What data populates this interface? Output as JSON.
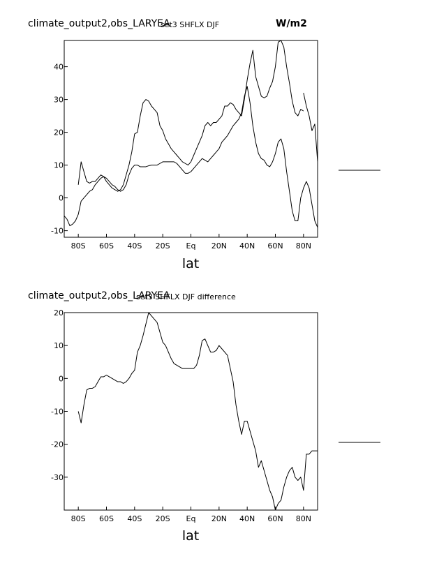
{
  "chart_data": [
    {
      "type": "line",
      "title": "climate_output2,obs_LARYEA",
      "subtitle": "set3 SHFLX DJF",
      "units": "W/m2",
      "xlabel": "lat",
      "ylabel": "",
      "xlim": [
        -90,
        90
      ],
      "ylim": [
        -12,
        48
      ],
      "xtick_values": [
        -80,
        -60,
        -40,
        -20,
        0,
        20,
        40,
        60,
        80
      ],
      "xtick_labels": [
        "80S",
        "60S",
        "40S",
        "20S",
        "Eq",
        "20N",
        "40N",
        "60N",
        "80N"
      ],
      "ytick_values": [
        -10,
        0,
        10,
        20,
        30,
        40
      ],
      "ytick_labels": [
        "-10",
        "0",
        "10",
        "20",
        "30",
        "40"
      ],
      "grid": false,
      "legend": "none",
      "line_color": "#000000",
      "series": [
        {
          "x": [
            -80,
            -78,
            -76,
            -74,
            -72,
            -70,
            -68,
            -66,
            -64,
            -62,
            -60,
            -58,
            -56,
            -54,
            -52,
            -50,
            -48,
            -46,
            -44,
            -42,
            -40,
            -38,
            -36,
            -34,
            -32,
            -30,
            -28,
            -26,
            -24,
            -22,
            -20,
            -18,
            -16,
            -14,
            -12,
            -10,
            -8,
            -6,
            -4,
            -2,
            0,
            2,
            4,
            6,
            8,
            10,
            12,
            14,
            16,
            18,
            20,
            22,
            24,
            26,
            28,
            30,
            32,
            34,
            36,
            38,
            40,
            42,
            44,
            46,
            48,
            50,
            52,
            54,
            56,
            58,
            60,
            62,
            64,
            66,
            68,
            70,
            72,
            74,
            76,
            78,
            80
          ],
          "y": [
            4,
            11,
            8,
            5,
            4.5,
            5,
            5,
            6,
            7,
            6.5,
            5,
            4,
            3,
            2.5,
            2,
            2.5,
            4,
            7,
            10,
            14,
            19.5,
            20,
            25,
            29,
            30,
            29.5,
            28,
            27,
            26,
            22,
            20.5,
            18,
            16.5,
            15,
            14,
            13,
            12,
            11,
            10.5,
            10,
            11,
            13,
            15,
            17,
            19,
            22,
            23,
            22,
            23,
            23,
            24,
            25,
            28,
            28,
            29,
            28.5,
            27,
            26,
            25,
            30,
            36,
            41,
            45,
            37,
            34,
            31,
            30.5,
            31,
            33.5,
            35.5,
            40,
            47.5,
            48,
            46,
            40,
            35,
            29.5,
            26,
            25,
            27,
            26.5
          ]
        },
        {
          "x": [
            -90,
            -88,
            -86,
            -84,
            -82,
            -80,
            -78,
            -76,
            -74,
            -72,
            -70,
            -68,
            -66,
            -64,
            -62,
            -60,
            -58,
            -56,
            -54,
            -52,
            -50,
            -48,
            -46,
            -44,
            -42,
            -40,
            -38,
            -36,
            -34,
            -32,
            -30,
            -28,
            -26,
            -24,
            -22,
            -20,
            -18,
            -16,
            -14,
            -12,
            -10,
            -8,
            -6,
            -4,
            -2,
            0,
            2,
            4,
            6,
            8,
            10,
            12,
            14,
            16,
            18,
            20,
            22,
            24,
            26,
            28,
            30,
            32,
            34,
            36,
            38,
            40,
            42,
            44,
            46,
            48,
            50,
            52,
            54,
            56,
            58,
            60,
            62,
            64,
            66,
            68,
            70,
            72,
            74,
            76,
            78,
            80,
            82,
            84,
            86,
            88,
            90
          ],
          "y": [
            -5.5,
            -6.5,
            -8.5,
            -8,
            -7,
            -5,
            -1,
            0,
            1,
            2,
            2.5,
            4,
            5,
            6,
            6.5,
            6,
            5,
            4,
            3.5,
            2.5,
            2,
            2.5,
            4,
            7,
            9,
            10,
            10,
            9.5,
            9.5,
            9.5,
            9.8,
            10,
            10,
            10,
            10.5,
            11,
            11,
            11,
            11,
            11,
            10.5,
            9.5,
            8.5,
            7.5,
            7.5,
            8,
            9,
            10,
            11,
            12,
            11.5,
            11,
            12,
            13,
            14,
            15,
            17,
            18,
            19,
            20.5,
            22,
            23,
            24,
            26,
            31,
            34,
            29,
            22,
            17,
            13.5,
            12,
            11.5,
            10,
            9.5,
            11,
            13.5,
            17,
            18,
            15,
            8,
            2,
            -4,
            -7,
            -7,
            0,
            3,
            5,
            3,
            -2,
            -7,
            -9
          ]
        },
        {
          "x": [
            80,
            82,
            84,
            86,
            88,
            90
          ],
          "y": [
            32,
            28,
            25,
            20.5,
            22.5,
            11
          ]
        }
      ]
    },
    {
      "type": "line",
      "title": "climate_output2,obs_LARYEA",
      "subtitle": "set3 SHFLX DJF difference",
      "units": "",
      "xlabel": "lat",
      "ylabel": "",
      "xlim": [
        -90,
        90
      ],
      "ylim": [
        -40,
        20
      ],
      "xtick_values": [
        -80,
        -60,
        -40,
        -20,
        0,
        20,
        40,
        60,
        80
      ],
      "xtick_labels": [
        "80S",
        "60S",
        "40S",
        "20S",
        "Eq",
        "20N",
        "40N",
        "60N",
        "80N"
      ],
      "ytick_values": [
        -30,
        -20,
        -10,
        0,
        10,
        20
      ],
      "ytick_labels": [
        "-30",
        "-20",
        "-10",
        "0",
        "10",
        "20"
      ],
      "grid": false,
      "legend": "none",
      "line_color": "#000000",
      "series": [
        {
          "x": [
            -80,
            -78,
            -76,
            -74,
            -72,
            -70,
            -68,
            -66,
            -64,
            -62,
            -60,
            -58,
            -56,
            -54,
            -52,
            -50,
            -48,
            -46,
            -44,
            -42,
            -40,
            -38,
            -36,
            -34,
            -32,
            -30,
            -28,
            -26,
            -24,
            -22,
            -20,
            -18,
            -16,
            -14,
            -12,
            -10,
            -8,
            -6,
            -4,
            -2,
            0,
            2,
            4,
            6,
            8,
            10,
            12,
            14,
            16,
            18,
            20,
            22,
            24,
            26,
            28,
            30,
            32,
            34,
            36,
            38,
            40,
            42,
            44,
            46,
            48,
            50,
            52,
            54,
            56,
            58,
            60,
            62,
            64,
            66,
            68,
            70,
            72,
            74,
            76,
            78,
            80,
            82,
            84,
            86,
            88,
            90
          ],
          "y": [
            -10,
            -13.5,
            -8,
            -3.5,
            -3,
            -3,
            -2.5,
            -1,
            0.5,
            0.5,
            1,
            0.5,
            0,
            -0.5,
            -1,
            -1,
            -1.5,
            -1,
            0,
            1.5,
            2.5,
            8,
            10,
            13,
            16.5,
            20,
            19,
            18,
            17,
            14,
            11,
            10,
            8,
            6,
            4.5,
            4,
            3.5,
            3,
            3,
            3,
            3,
            3,
            4,
            7,
            11.5,
            12,
            10,
            8,
            8,
            8.5,
            10,
            9,
            8,
            7,
            3,
            -1,
            -8,
            -13,
            -17,
            -13,
            -13,
            -16,
            -19,
            -22,
            -27,
            -25,
            -28,
            -31,
            -34,
            -36,
            -40,
            -38,
            -37,
            -33,
            -30,
            -28,
            -27,
            -30,
            -31,
            -30,
            -34,
            -23,
            -23,
            -22,
            -22,
            -22
          ]
        }
      ]
    }
  ]
}
